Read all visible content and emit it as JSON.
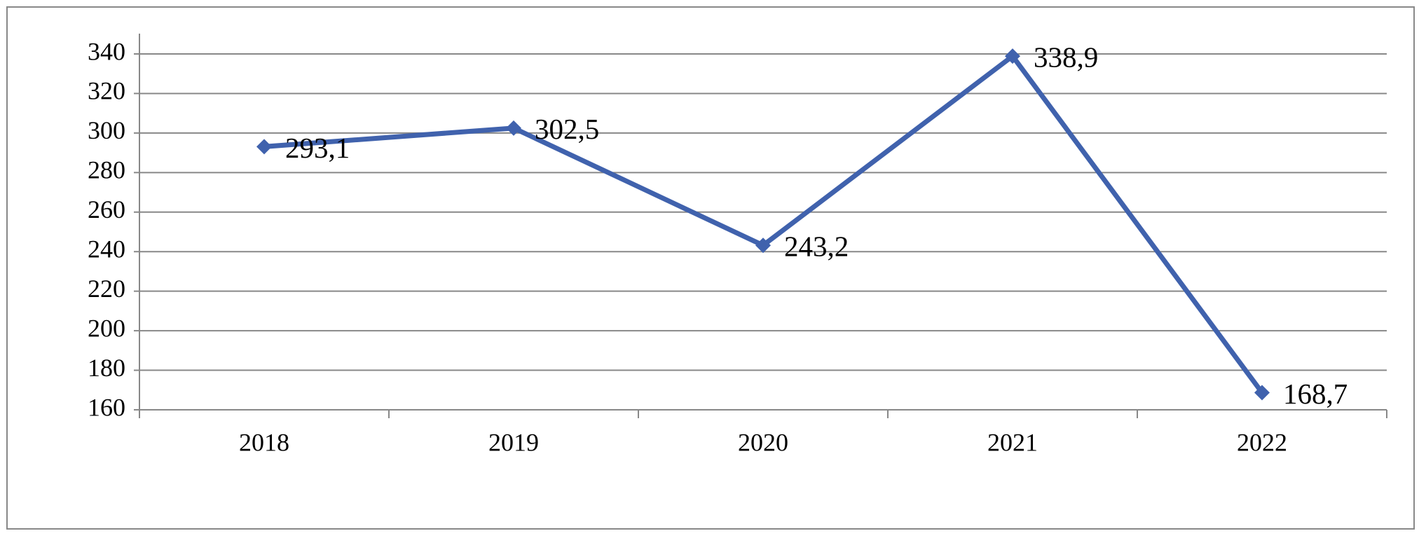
{
  "chart_data": {
    "type": "line",
    "categories": [
      "2018",
      "2019",
      "2020",
      "2021",
      "2022"
    ],
    "series": [
      {
        "color": "#4062ad",
        "values": [
          293.1,
          302.5,
          243.2,
          338.9,
          168.7
        ],
        "value_labels": [
          "293,1",
          "302,5",
          "243,2",
          "338,9",
          "168,7"
        ]
      }
    ],
    "ylim": [
      160,
      340
    ],
    "yticks": [
      160,
      180,
      200,
      220,
      240,
      260,
      280,
      300,
      320,
      340
    ],
    "grid": true
  }
}
